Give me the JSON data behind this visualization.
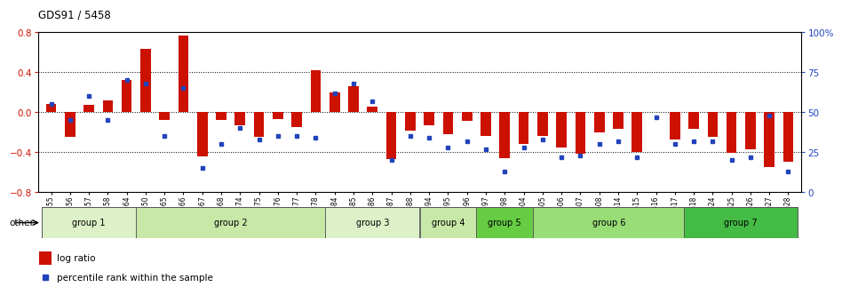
{
  "title": "GDS91 / 5458",
  "samples": [
    "GSM1555",
    "GSM1556",
    "GSM1557",
    "GSM1558",
    "GSM1564",
    "GSM1550",
    "GSM1565",
    "GSM1566",
    "GSM1567",
    "GSM1568",
    "GSM1574",
    "GSM1575",
    "GSM1576",
    "GSM1577",
    "GSM1578",
    "GSM1584",
    "GSM1585",
    "GSM1586",
    "GSM1587",
    "GSM1588",
    "GSM1594",
    "GSM1595",
    "GSM1596",
    "GSM1597",
    "GSM1598",
    "GSM1604",
    "GSM1605",
    "GSM1606",
    "GSM1607",
    "GSM1608",
    "GSM1614",
    "GSM1615",
    "GSM1616",
    "GSM1617",
    "GSM1618",
    "GSM1624",
    "GSM1625",
    "GSM1626",
    "GSM1627",
    "GSM1628"
  ],
  "log_ratio": [
    0.08,
    -0.25,
    0.07,
    0.12,
    0.32,
    0.63,
    -0.08,
    0.77,
    -0.44,
    -0.08,
    -0.13,
    -0.25,
    -0.07,
    -0.15,
    0.42,
    0.2,
    0.26,
    0.06,
    -0.47,
    -0.18,
    -0.13,
    -0.22,
    -0.09,
    -0.24,
    -0.46,
    -0.32,
    -0.24,
    -0.35,
    -0.42,
    -0.2,
    -0.17,
    -0.4,
    0.0,
    -0.27,
    -0.17,
    -0.25,
    -0.41,
    -0.37,
    -0.55,
    -0.5
  ],
  "percentile": [
    55,
    45,
    60,
    45,
    70,
    68,
    35,
    65,
    15,
    30,
    40,
    33,
    35,
    35,
    34,
    62,
    68,
    57,
    20,
    35,
    34,
    28,
    32,
    27,
    13,
    28,
    33,
    22,
    23,
    30,
    32,
    22,
    47,
    30,
    32,
    32,
    20,
    22,
    48,
    13
  ],
  "group_defs": [
    {
      "name": "group 1",
      "start": 0,
      "end": 4,
      "color": "#ddf0c8"
    },
    {
      "name": "group 2",
      "start": 5,
      "end": 14,
      "color": "#c8e8a8"
    },
    {
      "name": "group 3",
      "start": 15,
      "end": 19,
      "color": "#ddf0c8"
    },
    {
      "name": "group 4",
      "start": 20,
      "end": 22,
      "color": "#c8e8a8"
    },
    {
      "name": "group 5",
      "start": 23,
      "end": 25,
      "color": "#66cc44"
    },
    {
      "name": "group 6",
      "start": 26,
      "end": 33,
      "color": "#99dd77"
    },
    {
      "name": "group 7",
      "start": 34,
      "end": 39,
      "color": "#44bb44"
    }
  ],
  "bar_color": "#cc1100",
  "dot_color": "#2244bb",
  "ylim": [
    -0.8,
    0.8
  ],
  "y2lim": [
    0,
    100
  ],
  "yticks": [
    -0.8,
    -0.4,
    0.0,
    0.4,
    0.8
  ],
  "y2ticks": [
    0,
    25,
    50,
    75,
    100
  ],
  "y2ticklabels": [
    "0",
    "25",
    "50",
    "75",
    "100%"
  ],
  "dotted_lines": [
    -0.4,
    0.0,
    0.4
  ],
  "bg_color": "#ffffff"
}
